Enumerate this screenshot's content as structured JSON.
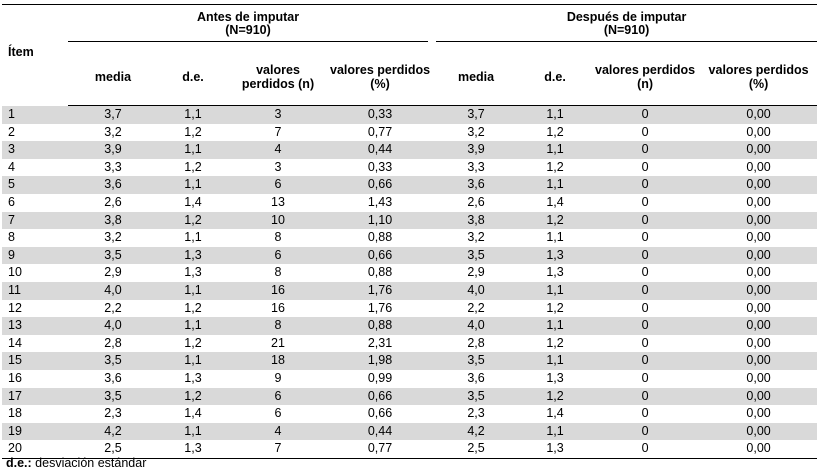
{
  "table": {
    "item_header": "Ítem",
    "group_before": {
      "title": "Antes de imputar",
      "n": "(N=910)"
    },
    "group_after": {
      "title": "Después de imputar",
      "n": "(N=910)"
    },
    "col_headers": [
      "media",
      "d.e.",
      "valores perdidos (n)",
      "valores perdidos (%)",
      "media",
      "d.e.",
      "valores perdidos (n)",
      "valores perdidos (%)"
    ],
    "rows": [
      [
        "1",
        "3,7",
        "1,1",
        "3",
        "0,33",
        "3,7",
        "1,1",
        "0",
        "0,00"
      ],
      [
        "2",
        "3,2",
        "1,2",
        "7",
        "0,77",
        "3,2",
        "1,2",
        "0",
        "0,00"
      ],
      [
        "3",
        "3,9",
        "1,1",
        "4",
        "0,44",
        "3,9",
        "1,1",
        "0",
        "0,00"
      ],
      [
        "4",
        "3,3",
        "1,2",
        "3",
        "0,33",
        "3,3",
        "1,2",
        "0",
        "0,00"
      ],
      [
        "5",
        "3,6",
        "1,1",
        "6",
        "0,66",
        "3,6",
        "1,1",
        "0",
        "0,00"
      ],
      [
        "6",
        "2,6",
        "1,4",
        "13",
        "1,43",
        "2,6",
        "1,4",
        "0",
        "0,00"
      ],
      [
        "7",
        "3,8",
        "1,2",
        "10",
        "1,10",
        "3,8",
        "1,2",
        "0",
        "0,00"
      ],
      [
        "8",
        "3,2",
        "1,1",
        "8",
        "0,88",
        "3,2",
        "1,1",
        "0",
        "0,00"
      ],
      [
        "9",
        "3,5",
        "1,3",
        "6",
        "0,66",
        "3,5",
        "1,3",
        "0",
        "0,00"
      ],
      [
        "10",
        "2,9",
        "1,3",
        "8",
        "0,88",
        "2,9",
        "1,3",
        "0",
        "0,00"
      ],
      [
        "11",
        "4,0",
        "1,1",
        "16",
        "1,76",
        "4,0",
        "1,1",
        "0",
        "0,00"
      ],
      [
        "12",
        "2,2",
        "1,2",
        "16",
        "1,76",
        "2,2",
        "1,2",
        "0",
        "0,00"
      ],
      [
        "13",
        "4,0",
        "1,1",
        "8",
        "0,88",
        "4,0",
        "1,1",
        "0",
        "0,00"
      ],
      [
        "14",
        "2,8",
        "1,2",
        "21",
        "2,31",
        "2,8",
        "1,2",
        "0",
        "0,00"
      ],
      [
        "15",
        "3,5",
        "1,1",
        "18",
        "1,98",
        "3,5",
        "1,1",
        "0",
        "0,00"
      ],
      [
        "16",
        "3,6",
        "1,3",
        "9",
        "0,99",
        "3,6",
        "1,3",
        "0",
        "0,00"
      ],
      [
        "17",
        "3,5",
        "1,2",
        "6",
        "0,66",
        "3,5",
        "1,2",
        "0",
        "0,00"
      ],
      [
        "18",
        "2,3",
        "1,4",
        "6",
        "0,66",
        "2,3",
        "1,4",
        "0",
        "0,00"
      ],
      [
        "19",
        "4,2",
        "1,1",
        "4",
        "0,44",
        "4,2",
        "1,1",
        "0",
        "0,00"
      ],
      [
        "20",
        "2,5",
        "1,3",
        "7",
        "0,77",
        "2,5",
        "1,3",
        "0",
        "0,00"
      ]
    ]
  },
  "footnote": {
    "abbr": "d.e.:",
    "text": " desviación estándar"
  }
}
